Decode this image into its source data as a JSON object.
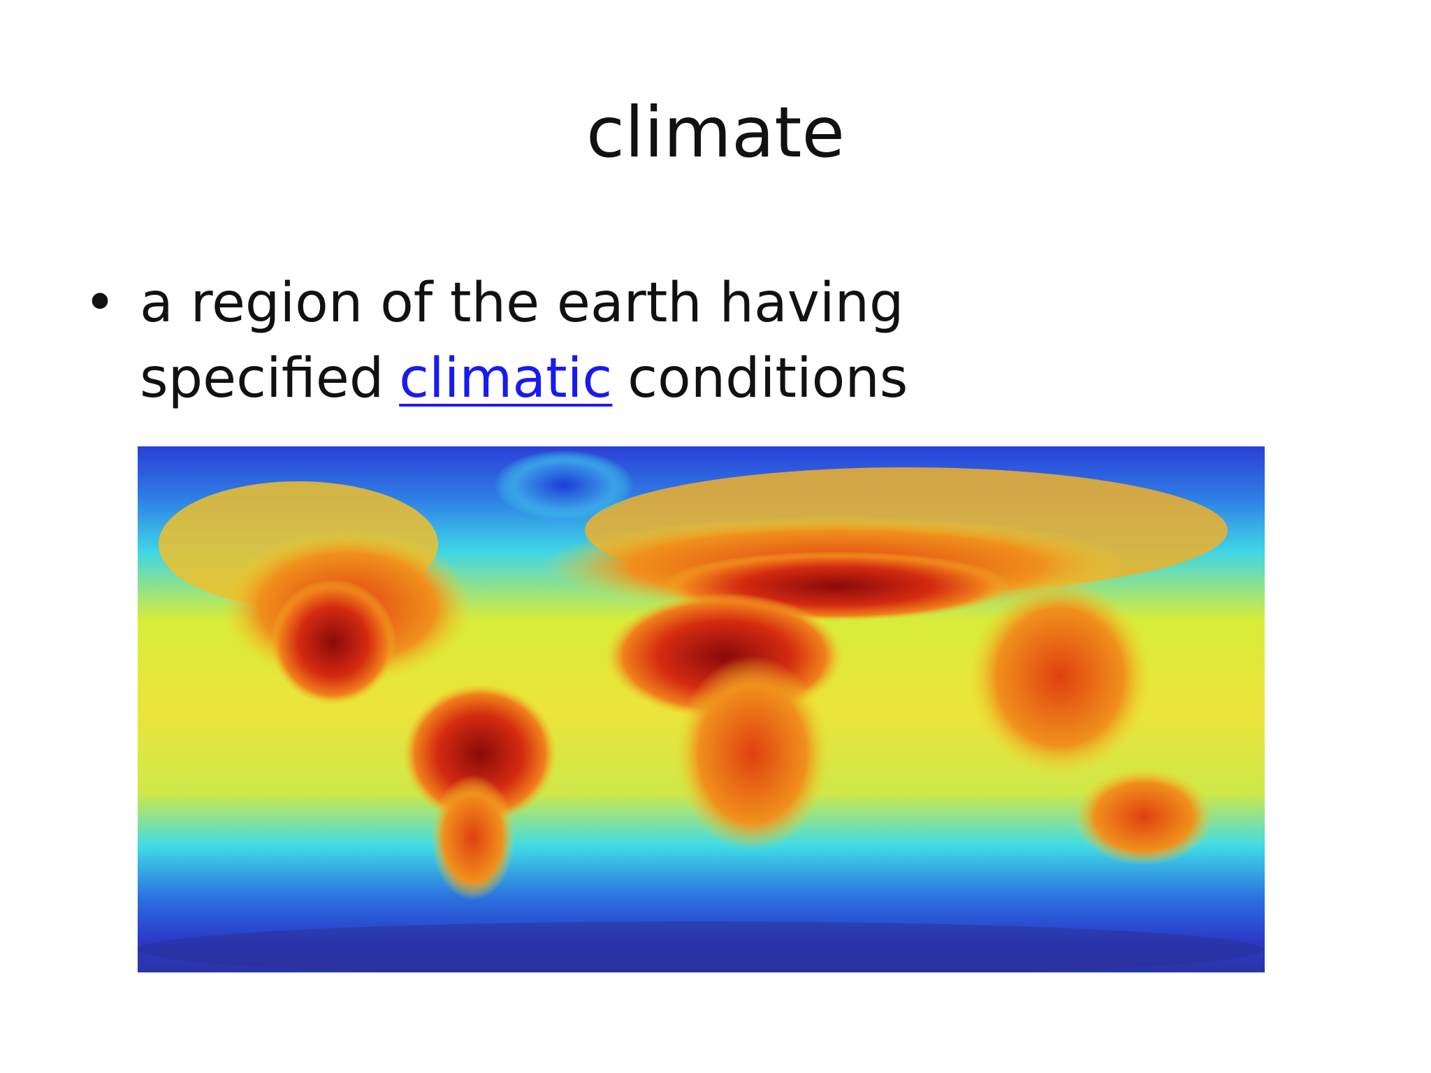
{
  "header": {
    "title": "climate"
  },
  "bullets": [
    {
      "marker": "•",
      "lines": [
        [
          "a region of the earth having"
        ],
        [
          "specified",
          "climatic",
          "conditions"
        ]
      ]
    }
  ]
}
